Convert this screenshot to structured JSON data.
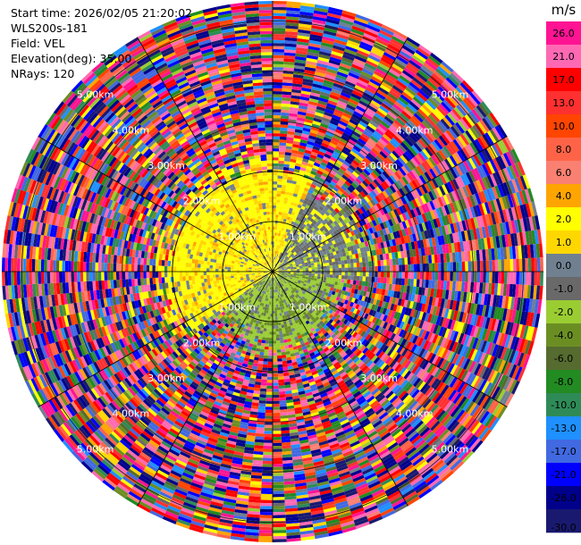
{
  "header": {
    "start_time": "Start time: 2026/02/05 21:20:02",
    "instrument": "WLS200s-181",
    "field": "Field: VEL",
    "elevation": "Elevation(deg): 35.00",
    "nrays": "NRays: 120"
  },
  "chart_data": {
    "type": "heatmap",
    "projection": "polar-ppi",
    "field": "VEL",
    "units": "m/s",
    "nrays": 120,
    "elevation_deg": 35.0,
    "range_km": [
      0,
      5.4
    ],
    "range_ring_labels": [
      "1.00km",
      "2.00km",
      "3.00km",
      "4.00km",
      "5.00km"
    ],
    "range_ring_values_km": [
      1,
      2,
      3,
      4,
      5
    ],
    "colorbar": {
      "title": "m/s",
      "ticks": [
        "26.0",
        "21.0",
        "17.0",
        "13.0",
        "10.0",
        "8.0",
        "6.0",
        "4.0",
        "2.0",
        "1.0",
        "0.0",
        "-1.0",
        "-2.0",
        "-4.0",
        "-6.0",
        "-8.0",
        "-10.0",
        "-13.0",
        "-17.0",
        "-21.0",
        "-26.0",
        "-30.0"
      ],
      "bins": [
        {
          "min": 26,
          "max": 30,
          "color": "#ff1493"
        },
        {
          "min": 21,
          "max": 26,
          "color": "#ff69b4"
        },
        {
          "min": 17,
          "max": 21,
          "color": "#ff0000"
        },
        {
          "min": 13,
          "max": 17,
          "color": "#ff3030"
        },
        {
          "min": 10,
          "max": 13,
          "color": "#ff4500"
        },
        {
          "min": 8,
          "max": 10,
          "color": "#ff6347"
        },
        {
          "min": 6,
          "max": 8,
          "color": "#fa8072"
        },
        {
          "min": 4,
          "max": 6,
          "color": "#ffa500"
        },
        {
          "min": 2,
          "max": 4,
          "color": "#ffff00"
        },
        {
          "min": 1,
          "max": 2,
          "color": "#ffd700"
        },
        {
          "min": 0,
          "max": 1,
          "color": "#708090"
        },
        {
          "min": -1,
          "max": 0,
          "color": "#696969"
        },
        {
          "min": -2,
          "max": -1,
          "color": "#9acd32"
        },
        {
          "min": -4,
          "max": -2,
          "color": "#6b8e23"
        },
        {
          "min": -6,
          "max": -4,
          "color": "#556b2f"
        },
        {
          "min": -8,
          "max": -6,
          "color": "#228b22"
        },
        {
          "min": -10,
          "max": -8,
          "color": "#2e8b57"
        },
        {
          "min": -13,
          "max": -10,
          "color": "#1e90ff"
        },
        {
          "min": -17,
          "max": -13,
          "color": "#4169e1"
        },
        {
          "min": -21,
          "max": -17,
          "color": "#0000ff"
        },
        {
          "min": -26,
          "max": -21,
          "color": "#00008b"
        },
        {
          "min": -30,
          "max": -26,
          "color": "#191970"
        }
      ]
    },
    "regions": [
      {
        "description_range_km": [
          0,
          2.3
        ],
        "sector": "west-north",
        "dominant_values": [
          3,
          1.5
        ],
        "colors": [
          "#ffff00",
          "#ffd700"
        ]
      },
      {
        "description_range_km": [
          0,
          1.6
        ],
        "sector": "south-east",
        "dominant_values": [
          -1.5,
          -3
        ],
        "colors": [
          "#9acd32",
          "#6b8e23"
        ]
      },
      {
        "description_range_km": [
          0,
          2.0
        ],
        "sector": "east",
        "dominant_values": [
          0.5,
          -0.5
        ],
        "colors": [
          "#708090",
          "#696969"
        ]
      },
      {
        "description_range_km": [
          2.3,
          5.4
        ],
        "sector": "all",
        "dominant_values": "noise",
        "colors": "full-scale"
      }
    ]
  }
}
